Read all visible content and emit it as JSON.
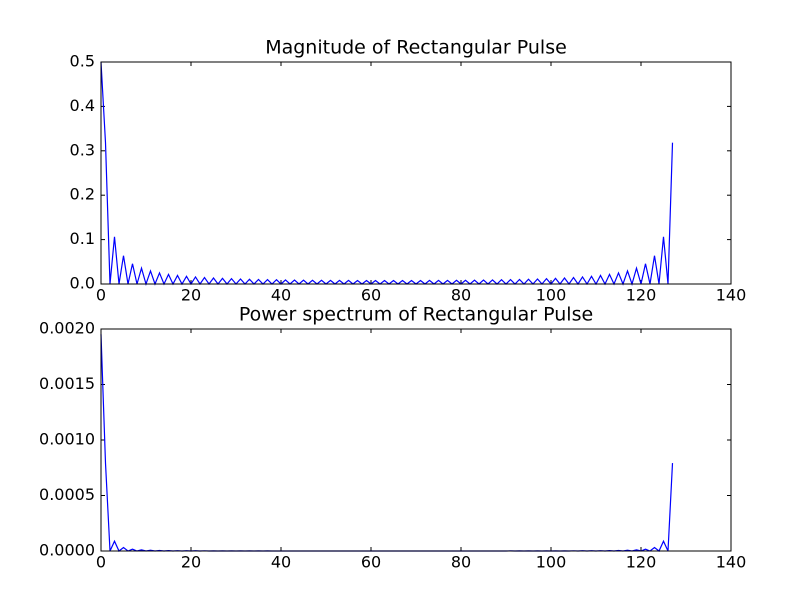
{
  "chart_data": [
    {
      "type": "line",
      "title": "Magnitude of Rectangular Pulse",
      "color": "#0000ff",
      "x": [
        0,
        1,
        2,
        3,
        4,
        5,
        6,
        7,
        8,
        9,
        10,
        11,
        12,
        13,
        14,
        15,
        16,
        17,
        18,
        19,
        20,
        21,
        22,
        23,
        24,
        25,
        26,
        27,
        28,
        29,
        30,
        31,
        32,
        33,
        34,
        35,
        36,
        37,
        38,
        39,
        40,
        41,
        42,
        43,
        44,
        45,
        46,
        47,
        48,
        49,
        50,
        51,
        52,
        53,
        54,
        55,
        56,
        57,
        58,
        59,
        60,
        61,
        62,
        63,
        64,
        65,
        66,
        67,
        68,
        69,
        70,
        71,
        72,
        73,
        74,
        75,
        76,
        77,
        78,
        79,
        80,
        81,
        82,
        83,
        84,
        85,
        86,
        87,
        88,
        89,
        90,
        91,
        92,
        93,
        94,
        95,
        96,
        97,
        98,
        99,
        100,
        101,
        102,
        103,
        104,
        105,
        106,
        107,
        108,
        109,
        110,
        111,
        112,
        113,
        114,
        115,
        116,
        117,
        118,
        119,
        120,
        121,
        122,
        123,
        124,
        125,
        126,
        127
      ],
      "values": [
        0.5,
        0.3183,
        0,
        0.1062,
        0,
        0.0638,
        0,
        0.0457,
        0,
        0.0357,
        0,
        0.0293,
        0,
        0.0249,
        0,
        0.0217,
        0,
        0.0193,
        0,
        0.0174,
        0,
        0.0158,
        0,
        0.0146,
        0,
        0.0136,
        0,
        0.0127,
        0,
        0.012,
        0,
        0.0113,
        0,
        0.0108,
        0,
        0.0103,
        0,
        0.0099,
        0,
        0.0096,
        0,
        0.0092,
        0,
        0.009,
        0,
        0.0087,
        0,
        0.0085,
        0,
        0.0084,
        0,
        0.0082,
        0,
        0.0081,
        0,
        0.008,
        0,
        0.0079,
        0,
        0.0079,
        0,
        0.0078,
        0,
        0.0078,
        0,
        0.0078,
        0,
        0.0078,
        0,
        0.0079,
        0,
        0.0079,
        0,
        0.008,
        0,
        0.0081,
        0,
        0.0082,
        0,
        0.0084,
        0,
        0.0085,
        0,
        0.0087,
        0,
        0.009,
        0,
        0.0092,
        0,
        0.0096,
        0,
        0.0099,
        0,
        0.0103,
        0,
        0.0108,
        0,
        0.0113,
        0,
        0.012,
        0,
        0.0127,
        0,
        0.0136,
        0,
        0.0146,
        0,
        0.0158,
        0,
        0.0174,
        0,
        0.0193,
        0,
        0.0217,
        0,
        0.0249,
        0,
        0.0293,
        0,
        0.0357,
        0,
        0.0457,
        0,
        0.0638,
        0,
        0.1062,
        0,
        0.3183
      ],
      "xlim": [
        0,
        140
      ],
      "xticks": [
        0,
        20,
        40,
        60,
        80,
        100,
        120,
        140
      ],
      "ylim": [
        0,
        0.5
      ],
      "yticks": [
        {
          "value": 0,
          "label": "0.0"
        },
        0.1,
        0.2,
        0.3,
        0.4,
        0.5
      ]
    },
    {
      "type": "line",
      "title": "Power spectrum of Rectangular Pulse",
      "color": "#0000ff",
      "x": [
        0,
        1,
        2,
        3,
        4,
        5,
        6,
        7,
        8,
        9,
        10,
        11,
        12,
        13,
        14,
        15,
        16,
        17,
        18,
        19,
        20,
        21,
        22,
        23,
        24,
        25,
        26,
        27,
        28,
        29,
        30,
        31,
        32,
        33,
        34,
        35,
        36,
        37,
        38,
        39,
        40,
        41,
        42,
        43,
        44,
        45,
        46,
        47,
        48,
        49,
        50,
        51,
        52,
        53,
        54,
        55,
        56,
        57,
        58,
        59,
        60,
        61,
        62,
        63,
        64,
        65,
        66,
        67,
        68,
        69,
        70,
        71,
        72,
        73,
        74,
        75,
        76,
        77,
        78,
        79,
        80,
        81,
        82,
        83,
        84,
        85,
        86,
        87,
        88,
        89,
        90,
        91,
        92,
        93,
        94,
        95,
        96,
        97,
        98,
        99,
        100,
        101,
        102,
        103,
        104,
        105,
        106,
        107,
        108,
        109,
        110,
        111,
        112,
        113,
        114,
        115,
        116,
        117,
        118,
        119,
        120,
        121,
        122,
        123,
        124,
        125,
        126,
        127
      ],
      "values": [
        0.001953,
        0.000792,
        0,
        8.81e-05,
        0,
        3.18e-05,
        0,
        1.63e-05,
        0,
        1e-05,
        0,
        6.7e-06,
        0,
        4.8e-06,
        0,
        3.7e-06,
        0,
        2.9e-06,
        0,
        2.4e-06,
        0,
        2e-06,
        0,
        1.7e-06,
        0,
        1.4e-06,
        0,
        1.3e-06,
        0,
        1.1e-06,
        0,
        1e-06,
        0,
        9e-07,
        0,
        8e-07,
        0,
        8e-07,
        0,
        7e-07,
        0,
        7e-07,
        0,
        6e-07,
        0,
        6e-07,
        0,
        6e-07,
        0,
        5e-07,
        0,
        5e-07,
        0,
        5e-07,
        0,
        5e-07,
        0,
        5e-07,
        0,
        5e-07,
        0,
        5e-07,
        0,
        5e-07,
        0,
        5e-07,
        0,
        5e-07,
        0,
        5e-07,
        0,
        5e-07,
        0,
        5e-07,
        0,
        5e-07,
        0,
        5e-07,
        0,
        5e-07,
        0,
        6e-07,
        0,
        6e-07,
        0,
        6e-07,
        0,
        7e-07,
        0,
        7e-07,
        0,
        8e-07,
        0,
        8e-07,
        0,
        9e-07,
        0,
        1e-06,
        0,
        1.1e-06,
        0,
        1.3e-06,
        0,
        1.4e-06,
        0,
        1.7e-06,
        0,
        2e-06,
        0,
        2.4e-06,
        0,
        2.9e-06,
        0,
        3.7e-06,
        0,
        4.8e-06,
        0,
        6.7e-06,
        0,
        1e-05,
        0,
        1.63e-05,
        0,
        3.18e-05,
        0,
        8.81e-05,
        0,
        0.000792
      ],
      "xlim": [
        0,
        140
      ],
      "xticks": [
        0,
        20,
        40,
        60,
        80,
        100,
        120,
        140
      ],
      "ylim": [
        0,
        0.002
      ],
      "yticks": [
        {
          "value": 0,
          "label": "0.0000"
        },
        {
          "value": 0.0005,
          "label": "0.0005"
        },
        {
          "value": 0.001,
          "label": "0.0010"
        },
        {
          "value": 0.0015,
          "label": "0.0015"
        },
        {
          "value": 0.002,
          "label": "0.0020"
        }
      ]
    }
  ]
}
